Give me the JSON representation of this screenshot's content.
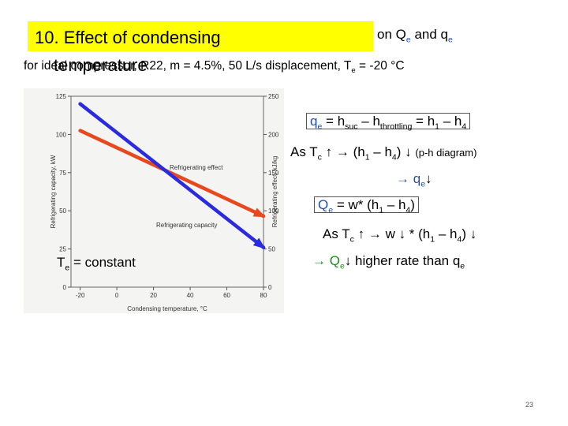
{
  "slide": {
    "title_main": "10. Effect of condensing",
    "title_overlap": "temperature",
    "title_tail_pre": "on Q",
    "title_tail_sub1": "e",
    "title_tail_mid": " and q",
    "title_tail_sub2": "e",
    "subtitle_pre": "for ideal compressor, R22, m = 4.5%, 50 L/s displacement, T",
    "subtitle_sub": "e",
    "subtitle_post": " = -20 °C",
    "te_constant_pre": "T",
    "te_constant_sub": "e",
    "te_constant_post": " = constant",
    "page_number": "23"
  },
  "equations": {
    "eq1": {
      "a": "q",
      "a_sub": "e",
      "b": " = h",
      "b_sub": "suc",
      "c": " – h",
      "c_sub": "throttling",
      "d": " = h",
      "d_sub": "1",
      "e": " – h",
      "e_sub": "4"
    },
    "eq2": {
      "a": "As T",
      "a_sub": "c",
      "b": "↑  → (h",
      "b_sub": "1",
      "c": " – h",
      "c_sub": "4",
      "d": ") ↓",
      "note": "(p-h diagram)"
    },
    "eq3": {
      "a": "→ q",
      "a_sub": "e",
      "b": "↓"
    },
    "eq4": {
      "a": "Q",
      "a_sub": "e",
      "b": " = w* (h",
      "b_sub": "1",
      "c": " – h",
      "c_sub": "4",
      "d": ")"
    },
    "eq5": {
      "a": "As T",
      "a_sub": "c",
      "b": "↑  → w ↓ * (h",
      "b_sub": "1",
      "c": " – h",
      "c_sub": "4",
      "d": ") ↓"
    },
    "eq6": {
      "a": "→ Q",
      "a_sub": "e",
      "b": "↓  higher rate than q",
      "b_sub": "e"
    }
  },
  "colors": {
    "red_line": "#e8481c",
    "blue_line": "#2a2ae0",
    "title_highlight": "#ffff00",
    "eq_blue": "#1f4fb3",
    "eq_green": "#1a8c1a"
  },
  "chart_data": {
    "type": "line",
    "xlabel": "Condensing temperature, °C",
    "ylabel_left": "Refrigerating capacity, kW",
    "ylabel_right": "Refrigerating effect, kJ/kg",
    "xlim": [
      -25,
      80
    ],
    "ylim_left": [
      0,
      125
    ],
    "ylim_right": [
      0,
      250
    ],
    "x_ticks": [
      "-20",
      "0",
      "20",
      "40",
      "60",
      "80"
    ],
    "y_ticks_left": [
      "0",
      "25",
      "50",
      "75",
      "100",
      "125"
    ],
    "y_ticks_right": [
      "0",
      "50",
      "100",
      "150",
      "200",
      "250"
    ],
    "series": [
      {
        "name": "Refrigerating effect",
        "axis": "right",
        "x": [
          -20,
          80
        ],
        "y": [
          205,
          93
        ]
      },
      {
        "name": "Refrigerating capacity",
        "axis": "left",
        "x": [
          -20,
          80
        ],
        "y": [
          120,
          26
        ]
      }
    ]
  }
}
